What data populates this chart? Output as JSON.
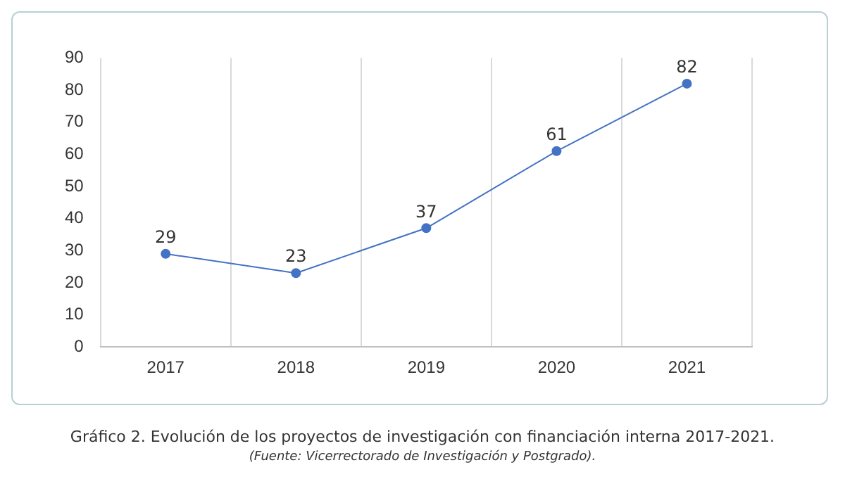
{
  "chart_data": {
    "type": "line",
    "title": "Gráfico 2. Evolución de los proyectos de investigación con financiación interna 2017-2021.",
    "annotations": [
      "(Fuente: Vicerrectorado de Investigación y Postgrado)."
    ],
    "categories": [
      "2017",
      "2018",
      "2019",
      "2020",
      "2021"
    ],
    "series": [
      {
        "color": "#4472c4",
        "values": [
          29,
          23,
          37,
          61,
          82
        ]
      }
    ],
    "ylim": [
      0,
      90
    ],
    "yticks": [
      0,
      10,
      20,
      30,
      40,
      50,
      60,
      70,
      80,
      90
    ],
    "grid": "x",
    "legend": false,
    "marker": "circle",
    "line_style": "solid",
    "data_labels": true
  }
}
